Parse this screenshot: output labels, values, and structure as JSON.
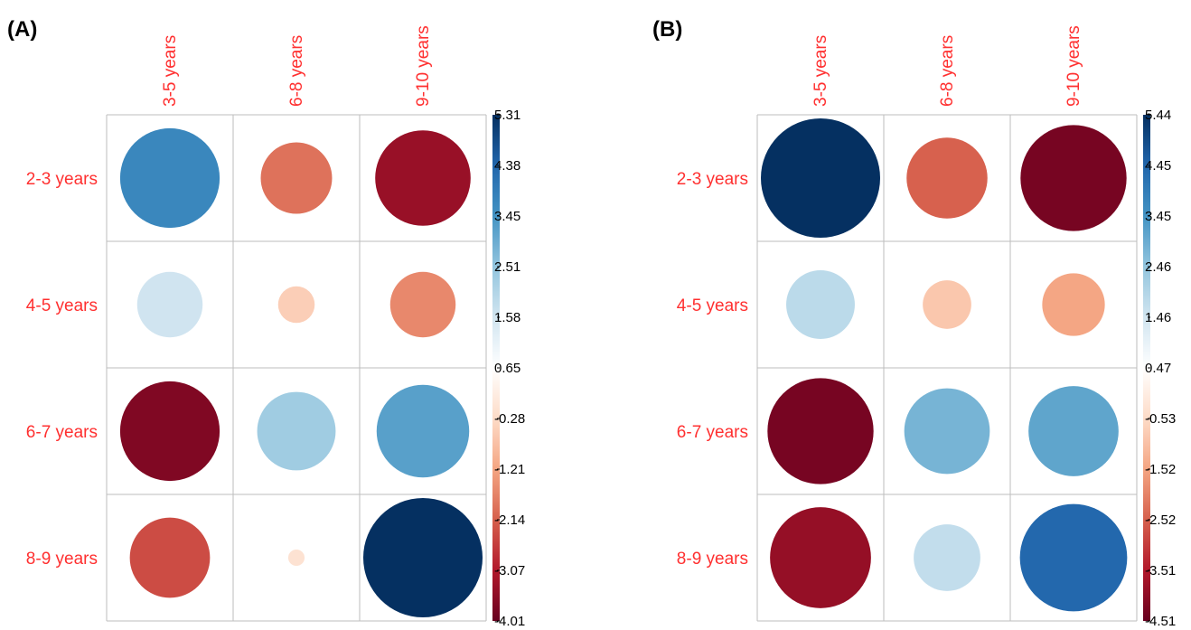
{
  "colors": {
    "label": "#ff3030",
    "grid": "#bebebe",
    "palette": [
      "#67001f",
      "#b2182b",
      "#d6604d",
      "#f4a582",
      "#fddbc7",
      "#ffffff",
      "#d1e5f0",
      "#92c5de",
      "#4393c3",
      "#2166ac",
      "#053061"
    ]
  },
  "chart_data": [
    {
      "type": "heatmap",
      "panel_label": "(A)",
      "columns": [
        "3-5 years",
        "6-8 years",
        "9-10 years"
      ],
      "rows": [
        "2-3 years",
        "4-5 years",
        "6-7 years",
        "8-9 years"
      ],
      "values": [
        [
          3.7,
          -1.9,
          -3.4
        ],
        [
          1.6,
          -0.5,
          -1.6
        ],
        [
          -3.7,
          2.3,
          3.2
        ],
        [
          -2.4,
          -0.1,
          5.31
        ]
      ],
      "colorbar_ticks": [
        "5.31",
        "4.38",
        "3.45",
        "2.51",
        "1.58",
        "0.65",
        "-0.28",
        "-1.21",
        "-2.14",
        "-3.07",
        "-4.01"
      ],
      "colorbar_range": [
        -4.01,
        5.31
      ],
      "grid": true,
      "legend_placement": "right"
    },
    {
      "type": "heatmap",
      "panel_label": "(B)",
      "columns": [
        "3-5 years",
        "6-8 years",
        "9-10 years"
      ],
      "rows": [
        "2-3 years",
        "4-5 years",
        "6-7 years",
        "8-9 years"
      ],
      "values": [
        [
          5.44,
          -2.5,
          -4.3
        ],
        [
          1.8,
          -0.9,
          -1.5
        ],
        [
          -4.3,
          2.8,
          3.1
        ],
        [
          -3.9,
          1.7,
          4.4
        ]
      ],
      "colorbar_ticks": [
        "5.44",
        "4.45",
        "3.45",
        "2.46",
        "1.46",
        "0.47",
        "-0.53",
        "-1.52",
        "-2.52",
        "-3.51",
        "-4.51"
      ],
      "colorbar_range": [
        -4.51,
        5.44
      ],
      "grid": true,
      "legend_placement": "right"
    }
  ]
}
